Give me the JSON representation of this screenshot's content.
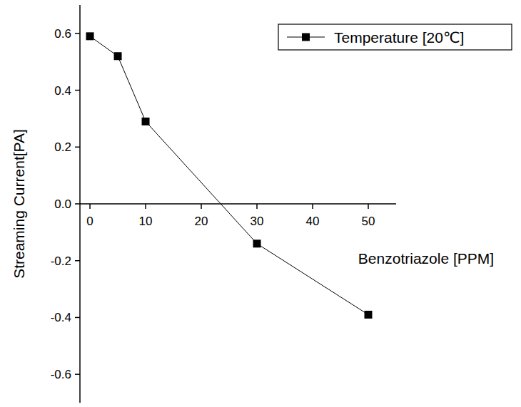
{
  "chart_data": {
    "type": "line",
    "x_label": "Benzotriazole [PPM]",
    "y_label": "Streaming Current[PA]",
    "x": [
      0,
      5,
      10,
      30,
      50
    ],
    "series": [
      {
        "name": "Temperature [20℃]",
        "color": "#000000",
        "marker": "square",
        "line_style": "solid",
        "values": [
          0.59,
          0.52,
          0.29,
          -0.14,
          -0.39
        ]
      }
    ],
    "xlim": [
      -1.8,
      55
    ],
    "xticks": [
      0,
      10,
      20,
      30,
      40,
      50
    ],
    "ylim": [
      -0.7,
      0.7
    ],
    "yticks": [
      -0.6,
      -0.4,
      -0.2,
      {
        "value": 0,
        "label": "0.0"
      },
      0.2,
      0.4,
      0.6
    ],
    "grid": false,
    "legend": "upper right"
  }
}
